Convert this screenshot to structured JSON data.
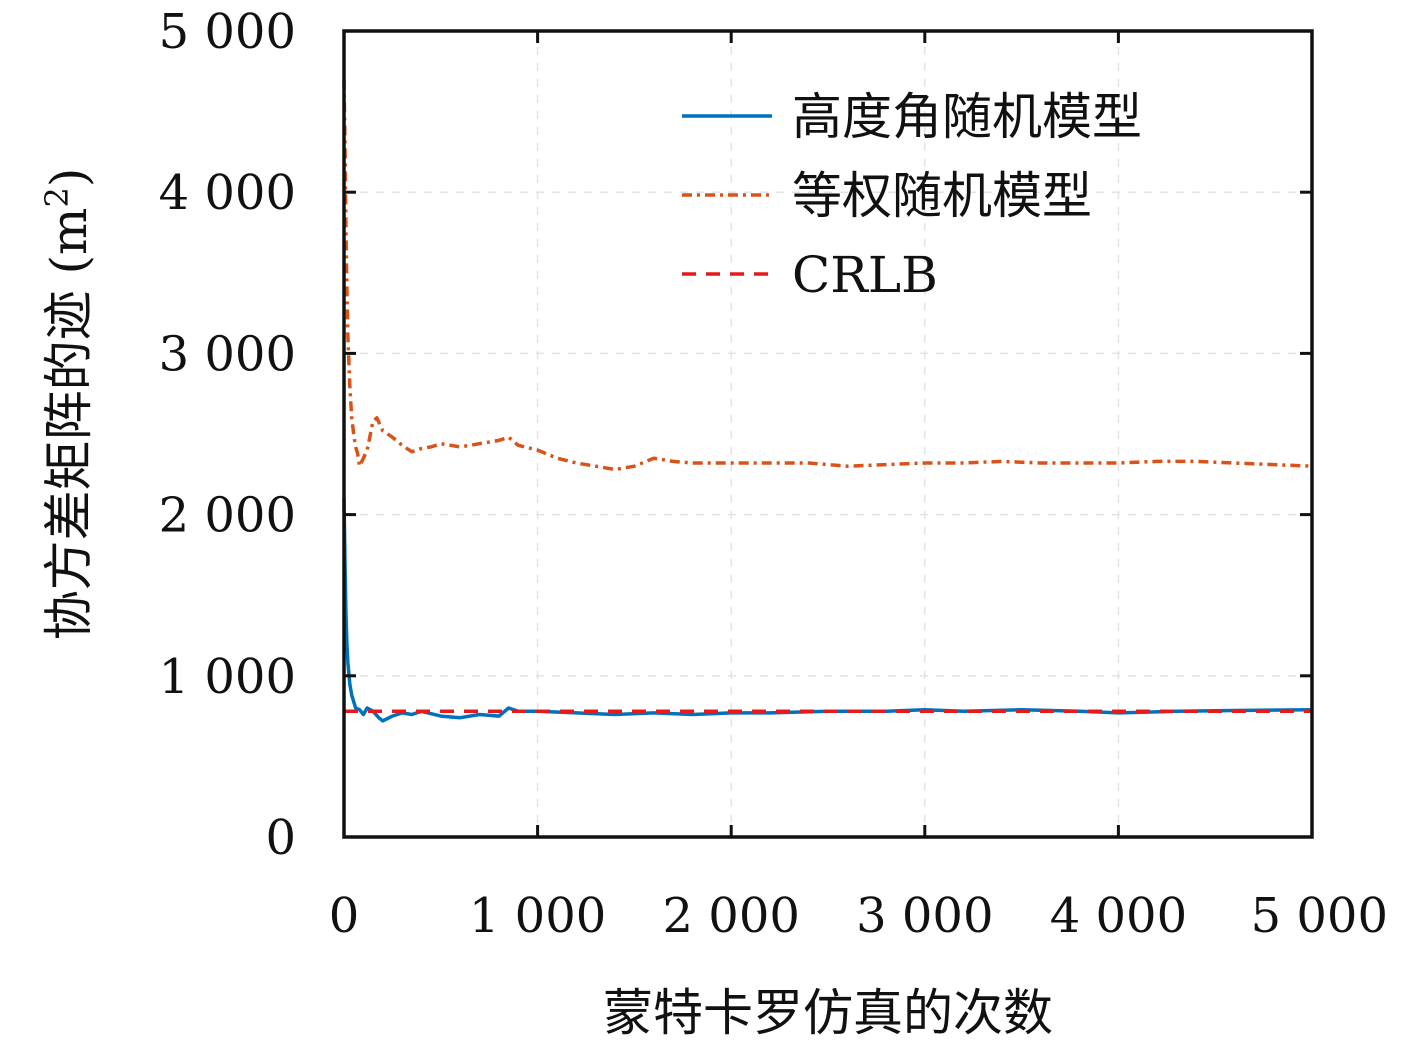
{
  "chart_data": {
    "type": "line",
    "title": "",
    "xlabel": "蒙特卡罗仿真的次数",
    "ylabel_main": "协方差矩阵的迹 (m",
    "ylabel_sup": "2",
    "ylabel_close": ")",
    "xlim": [
      0,
      5000
    ],
    "ylim": [
      0,
      5000
    ],
    "x_ticks": [
      0,
      1000,
      2000,
      3000,
      4000,
      5000
    ],
    "x_tick_labels": [
      "0",
      "1 000",
      "2 000",
      "3 000",
      "4 000",
      "5 000"
    ],
    "y_ticks": [
      0,
      1000,
      2000,
      3000,
      4000,
      5000
    ],
    "y_tick_labels": [
      "0",
      "1 000",
      "2 000",
      "3 000",
      "4 000",
      "5 000"
    ],
    "grid": true,
    "legend_position": "top-right",
    "series": [
      {
        "name": "高度角随机模型",
        "color": "#0072BD",
        "dash": "solid",
        "x": [
          0,
          5,
          10,
          15,
          20,
          30,
          40,
          50,
          60,
          80,
          100,
          120,
          150,
          180,
          200,
          250,
          300,
          350,
          400,
          500,
          600,
          700,
          800,
          850,
          900,
          1000,
          1200,
          1400,
          1600,
          1800,
          2000,
          2200,
          2500,
          2800,
          3000,
          3200,
          3500,
          3800,
          4000,
          4300,
          4600,
          5000
        ],
        "y": [
          2100,
          1700,
          1400,
          1200,
          1080,
          950,
          880,
          840,
          800,
          790,
          760,
          800,
          780,
          740,
          720,
          750,
          770,
          760,
          780,
          750,
          740,
          760,
          750,
          800,
          780,
          780,
          770,
          760,
          770,
          760,
          770,
          770,
          780,
          780,
          790,
          780,
          790,
          780,
          770,
          780,
          785,
          790
        ]
      },
      {
        "name": "等权随机模型",
        "color": "#D95319",
        "dash": "dashdot",
        "x": [
          0,
          5,
          10,
          15,
          20,
          30,
          40,
          50,
          60,
          70,
          80,
          100,
          120,
          150,
          170,
          200,
          250,
          300,
          350,
          400,
          450,
          500,
          550,
          600,
          700,
          800,
          850,
          900,
          1000,
          1100,
          1200,
          1300,
          1400,
          1500,
          1600,
          1700,
          1800,
          2000,
          2200,
          2400,
          2600,
          2800,
          3000,
          3200,
          3400,
          3600,
          3800,
          4000,
          4200,
          4400,
          4600,
          4800,
          5000
        ],
        "y": [
          4700,
          4300,
          3800,
          3400,
          3100,
          2800,
          2600,
          2500,
          2420,
          2380,
          2300,
          2350,
          2400,
          2580,
          2600,
          2520,
          2480,
          2430,
          2390,
          2410,
          2420,
          2440,
          2430,
          2420,
          2440,
          2460,
          2480,
          2430,
          2400,
          2350,
          2320,
          2300,
          2280,
          2300,
          2350,
          2330,
          2320,
          2320,
          2320,
          2320,
          2300,
          2310,
          2320,
          2320,
          2330,
          2320,
          2320,
          2320,
          2330,
          2330,
          2320,
          2310,
          2300
        ]
      },
      {
        "name": "CRLB",
        "color": "#E41A1C",
        "dash": "dashed",
        "x": [
          0,
          5000
        ],
        "y": [
          780,
          780
        ]
      }
    ]
  }
}
